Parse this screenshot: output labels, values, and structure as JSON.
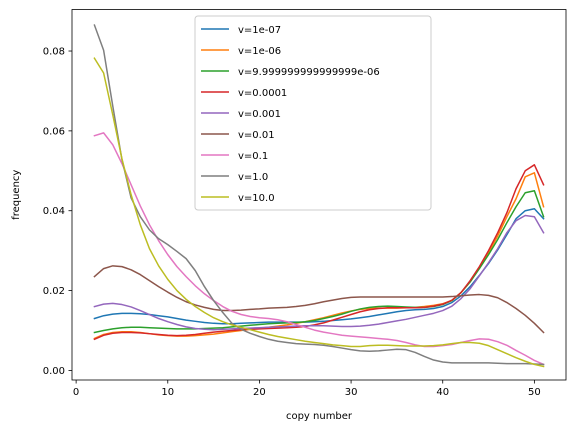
{
  "chart_data": {
    "type": "line",
    "title": "",
    "xlabel": "copy number",
    "ylabel": "frequency",
    "xlim": [
      -0.45,
      53.45
    ],
    "ylim": [
      -0.0024,
      0.0904
    ],
    "xticks": [
      0,
      10,
      20,
      30,
      40,
      50
    ],
    "yticks": [
      0.0,
      0.02,
      0.04,
      0.06,
      0.08
    ],
    "ytick_labels": [
      "0.00",
      "0.02",
      "0.04",
      "0.06",
      "0.08"
    ],
    "grid": false,
    "legend_position": "top-center",
    "x": [
      2,
      3,
      4,
      5,
      6,
      7,
      8,
      9,
      10,
      11,
      12,
      13,
      14,
      15,
      16,
      17,
      18,
      19,
      20,
      21,
      22,
      23,
      24,
      25,
      26,
      27,
      28,
      29,
      30,
      31,
      32,
      33,
      34,
      35,
      36,
      37,
      38,
      39,
      40,
      41,
      42,
      43,
      44,
      45,
      46,
      47,
      48,
      49,
      50,
      51
    ],
    "series": [
      {
        "name": "v=1e-07",
        "color": "#1f77b4",
        "values": [
          0.013,
          0.0137,
          0.0141,
          0.0143,
          0.0143,
          0.0142,
          0.014,
          0.0137,
          0.0134,
          0.013,
          0.0126,
          0.0123,
          0.012,
          0.0118,
          0.0117,
          0.0117,
          0.0118,
          0.0119,
          0.012,
          0.0121,
          0.0121,
          0.0121,
          0.0121,
          0.0121,
          0.0122,
          0.0123,
          0.0125,
          0.0127,
          0.0129,
          0.0132,
          0.0135,
          0.0139,
          0.0143,
          0.0147,
          0.015,
          0.0152,
          0.0153,
          0.0155,
          0.016,
          0.017,
          0.0187,
          0.021,
          0.0238,
          0.0268,
          0.0302,
          0.034,
          0.038,
          0.04,
          0.0405,
          0.038
        ]
      },
      {
        "name": "v=1e-06",
        "color": "#ff7f0e",
        "values": [
          0.008,
          0.009,
          0.0095,
          0.0097,
          0.0097,
          0.0095,
          0.0092,
          0.0089,
          0.0087,
          0.0086,
          0.0086,
          0.0087,
          0.0089,
          0.0091,
          0.0094,
          0.0097,
          0.01,
          0.0103,
          0.0106,
          0.0108,
          0.0111,
          0.0114,
          0.0118,
          0.0122,
          0.0127,
          0.0132,
          0.0138,
          0.0144,
          0.0149,
          0.0153,
          0.0155,
          0.0156,
          0.0156,
          0.0156,
          0.0157,
          0.0158,
          0.016,
          0.0163,
          0.0167,
          0.0175,
          0.0195,
          0.0222,
          0.0257,
          0.0295,
          0.0337,
          0.0385,
          0.043,
          0.0485,
          0.0495,
          0.041
        ]
      },
      {
        "name": "v=9.999999999999999e-06",
        "color": "#2ca02c",
        "values": [
          0.0095,
          0.01,
          0.0104,
          0.0107,
          0.0108,
          0.0108,
          0.0107,
          0.0106,
          0.0105,
          0.0104,
          0.0104,
          0.0104,
          0.0105,
          0.0106,
          0.0107,
          0.0109,
          0.0111,
          0.0113,
          0.0115,
          0.0117,
          0.0118,
          0.0119,
          0.012,
          0.0122,
          0.0125,
          0.013,
          0.0135,
          0.0141,
          0.0148,
          0.0154,
          0.0158,
          0.016,
          0.0161,
          0.016,
          0.0159,
          0.0158,
          0.0158,
          0.016,
          0.0165,
          0.0175,
          0.0195,
          0.0222,
          0.0255,
          0.029,
          0.0328,
          0.037,
          0.041,
          0.0445,
          0.045,
          0.0385
        ]
      },
      {
        "name": "v=0.0001",
        "color": "#d62728",
        "values": [
          0.0078,
          0.0088,
          0.0093,
          0.0095,
          0.0095,
          0.0094,
          0.0092,
          0.009,
          0.0088,
          0.0087,
          0.0088,
          0.009,
          0.0093,
          0.0096,
          0.0098,
          0.01,
          0.0102,
          0.0103,
          0.0104,
          0.0105,
          0.0106,
          0.0107,
          0.0108,
          0.011,
          0.0114,
          0.0119,
          0.0126,
          0.0133,
          0.014,
          0.0147,
          0.0152,
          0.0155,
          0.0157,
          0.0157,
          0.0157,
          0.0157,
          0.0158,
          0.0161,
          0.0166,
          0.0176,
          0.0195,
          0.0225,
          0.026,
          0.03,
          0.0345,
          0.0395,
          0.0455,
          0.05,
          0.0515,
          0.0465
        ]
      },
      {
        "name": "v=0.001",
        "color": "#9467bd",
        "values": [
          0.016,
          0.0166,
          0.0168,
          0.0165,
          0.0159,
          0.015,
          0.014,
          0.013,
          0.0122,
          0.0115,
          0.0109,
          0.0105,
          0.0103,
          0.0102,
          0.0103,
          0.0104,
          0.0105,
          0.0106,
          0.0107,
          0.0108,
          0.0109,
          0.011,
          0.0111,
          0.0112,
          0.0112,
          0.0112,
          0.0111,
          0.011,
          0.011,
          0.0111,
          0.0113,
          0.0116,
          0.012,
          0.0124,
          0.0128,
          0.0133,
          0.0138,
          0.0143,
          0.015,
          0.0161,
          0.018,
          0.0205,
          0.0237,
          0.027,
          0.0305,
          0.0345,
          0.0375,
          0.0388,
          0.0385,
          0.0345
        ]
      },
      {
        "name": "v=0.01",
        "color": "#8c564b",
        "values": [
          0.0235,
          0.0255,
          0.0262,
          0.026,
          0.0252,
          0.024,
          0.0225,
          0.021,
          0.0196,
          0.0183,
          0.0172,
          0.0164,
          0.0158,
          0.0153,
          0.015,
          0.015,
          0.0151,
          0.0153,
          0.0154,
          0.0156,
          0.0157,
          0.0158,
          0.016,
          0.0163,
          0.0167,
          0.0172,
          0.0176,
          0.018,
          0.0183,
          0.0184,
          0.0184,
          0.0184,
          0.0184,
          0.0184,
          0.0184,
          0.0184,
          0.0184,
          0.0184,
          0.0184,
          0.0185,
          0.0187,
          0.0189,
          0.019,
          0.0188,
          0.0182,
          0.017,
          0.0155,
          0.0138,
          0.0118,
          0.0095
        ]
      },
      {
        "name": "v=0.1",
        "color": "#e377c2",
        "values": [
          0.0588,
          0.0595,
          0.0565,
          0.0518,
          0.0465,
          0.0412,
          0.0365,
          0.0325,
          0.029,
          0.026,
          0.0235,
          0.0212,
          0.0192,
          0.0175,
          0.016,
          0.0148,
          0.014,
          0.0135,
          0.0132,
          0.013,
          0.0127,
          0.0122,
          0.0115,
          0.0108,
          0.0101,
          0.0096,
          0.0092,
          0.0088,
          0.0086,
          0.0084,
          0.0082,
          0.008,
          0.0078,
          0.0075,
          0.007,
          0.0064,
          0.006,
          0.006,
          0.0062,
          0.0065,
          0.007,
          0.0075,
          0.0079,
          0.0078,
          0.0072,
          0.0063,
          0.005,
          0.0038,
          0.0025,
          0.0015
        ]
      },
      {
        "name": "v=1.0",
        "color": "#7f7f7f",
        "values": [
          0.0865,
          0.0802,
          0.0662,
          0.0528,
          0.0432,
          0.0385,
          0.0352,
          0.033,
          0.0315,
          0.0298,
          0.028,
          0.025,
          0.021,
          0.0175,
          0.0145,
          0.0118,
          0.0103,
          0.0093,
          0.0085,
          0.0078,
          0.0073,
          0.007,
          0.0067,
          0.0066,
          0.0065,
          0.0063,
          0.006,
          0.0056,
          0.0052,
          0.0049,
          0.0048,
          0.0049,
          0.0051,
          0.0053,
          0.0052,
          0.0045,
          0.0035,
          0.0026,
          0.0021,
          0.0019,
          0.0019,
          0.0019,
          0.0019,
          0.0019,
          0.0018,
          0.0017,
          0.0017,
          0.0017,
          0.0016,
          0.0015
        ]
      },
      {
        "name": "v=10.0",
        "color": "#bcbd22",
        "values": [
          0.0782,
          0.0745,
          0.064,
          0.053,
          0.044,
          0.0365,
          0.0305,
          0.0262,
          0.0228,
          0.02,
          0.0178,
          0.016,
          0.0145,
          0.0132,
          0.0122,
          0.0114,
          0.0108,
          0.0102,
          0.0096,
          0.009,
          0.0085,
          0.0081,
          0.0077,
          0.0073,
          0.007,
          0.0067,
          0.0064,
          0.0062,
          0.006,
          0.006,
          0.0062,
          0.0063,
          0.0063,
          0.0062,
          0.0061,
          0.0061,
          0.0061,
          0.0062,
          0.0064,
          0.0067,
          0.007,
          0.007,
          0.0068,
          0.0062,
          0.0052,
          0.0042,
          0.0032,
          0.0023,
          0.0015,
          0.001
        ]
      }
    ]
  }
}
